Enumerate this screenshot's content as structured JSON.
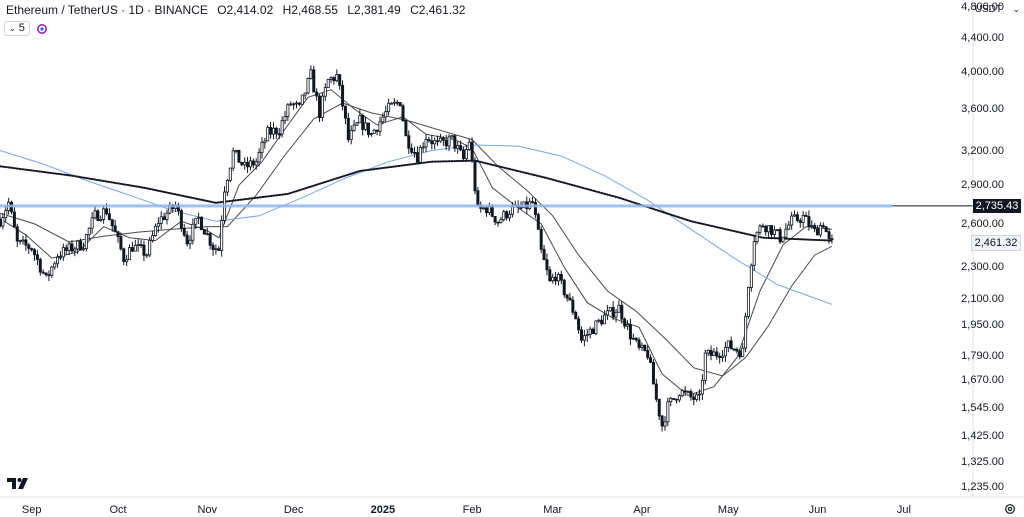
{
  "legend": {
    "symbol": "Ethereum / TetherUS · 1D · BINANCE",
    "o_label": "O",
    "o_value": "2,414.02",
    "h_label": "H",
    "h_value": "2,468.55",
    "l_label": "L",
    "l_value": "2,381.49",
    "c_label": "C",
    "c_value": "2,461.32"
  },
  "indicator_toggle": {
    "chevron": "⌄",
    "count": "5",
    "icon": "sync-icon"
  },
  "currency": {
    "label": "USDT",
    "chevron": "⌄"
  },
  "price_tags": {
    "horizontal_line": "2,735.43",
    "last_price": "2,461.32"
  },
  "colors": {
    "candle": "#131722",
    "ma_thin": "#4a4a4a",
    "ma_blue": "#7aa7e6",
    "ma_dotted": "#131722",
    "hline": "#90b4f0",
    "grid_border": "#e0e3eb"
  },
  "chart_data": {
    "type": "candlestick",
    "symbol": "ETHUSDT",
    "interval": "1D",
    "exchange": "BINANCE",
    "y_scale": "log",
    "ylim": [
      1200,
      4900
    ],
    "grid": false,
    "y_ticks": [
      {
        "value": 4800,
        "label": "4,800.00"
      },
      {
        "value": 4400,
        "label": "4,400.00"
      },
      {
        "value": 4000,
        "label": "4,000.00"
      },
      {
        "value": 3600,
        "label": "3,600.00"
      },
      {
        "value": 3200,
        "label": "3,200.00"
      },
      {
        "value": 2900,
        "label": "2,900.00"
      },
      {
        "value": 2600,
        "label": "2,600.00"
      },
      {
        "value": 2300,
        "label": "2,300.00"
      },
      {
        "value": 2100,
        "label": "2,100.00"
      },
      {
        "value": 1950,
        "label": "1,950.00"
      },
      {
        "value": 1790,
        "label": "1,790.00"
      },
      {
        "value": 1670,
        "label": "1,670.00"
      },
      {
        "value": 1545,
        "label": "1,545.00"
      },
      {
        "value": 1425,
        "label": "1,425.00"
      },
      {
        "value": 1325,
        "label": "1,325.00"
      },
      {
        "value": 1235,
        "label": "1,235.00"
      }
    ],
    "x_range": [
      "2024-08-21",
      "2025-07-25"
    ],
    "x_ticks": [
      {
        "date": "2024-09-01",
        "label": "Sep",
        "bold": false
      },
      {
        "date": "2024-10-01",
        "label": "Oct",
        "bold": false
      },
      {
        "date": "2024-11-01",
        "label": "Nov",
        "bold": false
      },
      {
        "date": "2024-12-01",
        "label": "Dec",
        "bold": false
      },
      {
        "date": "2025-01-01",
        "label": "2025",
        "bold": true
      },
      {
        "date": "2025-02-01",
        "label": "Feb",
        "bold": false
      },
      {
        "date": "2025-03-01",
        "label": "Mar",
        "bold": false
      },
      {
        "date": "2025-04-01",
        "label": "Apr",
        "bold": false
      },
      {
        "date": "2025-05-01",
        "label": "May",
        "bold": false
      },
      {
        "date": "2025-06-01",
        "label": "Jun",
        "bold": false
      },
      {
        "date": "2025-07-01",
        "label": "Jul",
        "bold": false
      }
    ],
    "horizontal_line": {
      "value": 2735.43,
      "end_date": "2025-06-27"
    },
    "last_price": 2461.32,
    "price_path": [
      [
        "2024-08-21",
        2630
      ],
      [
        "2024-08-24",
        2760
      ],
      [
        "2024-08-27",
        2460
      ],
      [
        "2024-09-01",
        2430
      ],
      [
        "2024-09-06",
        2220
      ],
      [
        "2024-09-10",
        2380
      ],
      [
        "2024-09-14",
        2420
      ],
      [
        "2024-09-19",
        2460
      ],
      [
        "2024-09-23",
        2660
      ],
      [
        "2024-09-27",
        2700
      ],
      [
        "2024-10-03",
        2360
      ],
      [
        "2024-10-06",
        2440
      ],
      [
        "2024-10-11",
        2390
      ],
      [
        "2024-10-15",
        2620
      ],
      [
        "2024-10-21",
        2740
      ],
      [
        "2024-10-25",
        2480
      ],
      [
        "2024-10-29",
        2640
      ],
      [
        "2024-11-03",
        2440
      ],
      [
        "2024-11-05",
        2420
      ],
      [
        "2024-11-07",
        2880
      ],
      [
        "2024-11-10",
        3180
      ],
      [
        "2024-11-14",
        3050
      ],
      [
        "2024-11-18",
        3100
      ],
      [
        "2024-11-22",
        3360
      ],
      [
        "2024-11-26",
        3400
      ],
      [
        "2024-11-30",
        3660
      ],
      [
        "2024-12-03",
        3600
      ],
      [
        "2024-12-07",
        3960
      ],
      [
        "2024-12-10",
        3560
      ],
      [
        "2024-12-13",
        3900
      ],
      [
        "2024-12-16",
        3950
      ],
      [
        "2024-12-18",
        3640
      ],
      [
        "2024-12-20",
        3300
      ],
      [
        "2024-12-24",
        3480
      ],
      [
        "2024-12-28",
        3350
      ],
      [
        "2025-01-03",
        3600
      ],
      [
        "2025-01-07",
        3680
      ],
      [
        "2025-01-09",
        3320
      ],
      [
        "2025-01-13",
        3150
      ],
      [
        "2025-01-16",
        3330
      ],
      [
        "2025-01-20",
        3250
      ],
      [
        "2025-01-25",
        3300
      ],
      [
        "2025-01-29",
        3120
      ],
      [
        "2025-01-31",
        3290
      ],
      [
        "2025-02-02",
        2880
      ],
      [
        "2025-02-03",
        2700
      ],
      [
        "2025-02-06",
        2720
      ],
      [
        "2025-02-10",
        2620
      ],
      [
        "2025-02-14",
        2700
      ],
      [
        "2025-02-19",
        2720
      ],
      [
        "2025-02-22",
        2760
      ],
      [
        "2025-02-25",
        2400
      ],
      [
        "2025-02-28",
        2200
      ],
      [
        "2025-03-02",
        2250
      ],
      [
        "2025-03-05",
        2150
      ],
      [
        "2025-03-09",
        2000
      ],
      [
        "2025-03-11",
        1870
      ],
      [
        "2025-03-14",
        1920
      ],
      [
        "2025-03-19",
        2000
      ],
      [
        "2025-03-24",
        2050
      ],
      [
        "2025-03-28",
        1900
      ],
      [
        "2025-03-31",
        1820
      ],
      [
        "2025-04-03",
        1800
      ],
      [
        "2025-04-06",
        1580
      ],
      [
        "2025-04-08",
        1470
      ],
      [
        "2025-04-10",
        1550
      ],
      [
        "2025-04-14",
        1620
      ],
      [
        "2025-04-18",
        1590
      ],
      [
        "2025-04-21",
        1580
      ],
      [
        "2025-04-23",
        1790
      ],
      [
        "2025-04-27",
        1800
      ],
      [
        "2025-05-01",
        1840
      ],
      [
        "2025-05-06",
        1810
      ],
      [
        "2025-05-08",
        2200
      ],
      [
        "2025-05-10",
        2500
      ],
      [
        "2025-05-13",
        2600
      ],
      [
        "2025-05-16",
        2560
      ],
      [
        "2025-05-19",
        2500
      ],
      [
        "2025-05-23",
        2620
      ],
      [
        "2025-05-27",
        2650
      ],
      [
        "2025-05-31",
        2540
      ],
      [
        "2025-06-03",
        2610
      ],
      [
        "2025-06-05",
        2470
      ],
      [
        "2025-06-06",
        2461
      ]
    ],
    "series": [
      {
        "type": "line",
        "style": "solid",
        "color": "#4a4a4a",
        "points": [
          [
            "2024-08-21",
            2640
          ],
          [
            "2024-08-30",
            2520
          ],
          [
            "2024-09-08",
            2360
          ],
          [
            "2024-09-17",
            2400
          ],
          [
            "2024-09-26",
            2580
          ],
          [
            "2024-10-05",
            2500
          ],
          [
            "2024-10-14",
            2480
          ],
          [
            "2024-10-23",
            2620
          ],
          [
            "2024-11-01",
            2550
          ],
          [
            "2024-11-05",
            2500
          ],
          [
            "2024-11-12",
            2900
          ],
          [
            "2024-11-20",
            3100
          ],
          [
            "2024-11-28",
            3400
          ],
          [
            "2024-12-06",
            3720
          ],
          [
            "2024-12-14",
            3800
          ],
          [
            "2024-12-22",
            3600
          ],
          [
            "2024-12-30",
            3440
          ],
          [
            "2025-01-08",
            3520
          ],
          [
            "2025-01-16",
            3350
          ],
          [
            "2025-01-26",
            3300
          ],
          [
            "2025-02-01",
            3220
          ],
          [
            "2025-02-08",
            2880
          ],
          [
            "2025-02-17",
            2720
          ],
          [
            "2025-02-25",
            2600
          ],
          [
            "2025-03-05",
            2300
          ],
          [
            "2025-03-13",
            2080
          ],
          [
            "2025-03-22",
            1990
          ],
          [
            "2025-03-31",
            1940
          ],
          [
            "2025-04-08",
            1700
          ],
          [
            "2025-04-17",
            1600
          ],
          [
            "2025-04-26",
            1640
          ],
          [
            "2025-05-04",
            1780
          ],
          [
            "2025-05-12",
            2150
          ],
          [
            "2025-05-20",
            2450
          ],
          [
            "2025-05-28",
            2580
          ],
          [
            "2025-06-06",
            2560
          ]
        ]
      },
      {
        "type": "line",
        "style": "solid",
        "color": "#4a4a4a",
        "points": [
          [
            "2024-08-21",
            2680
          ],
          [
            "2024-09-02",
            2600
          ],
          [
            "2024-09-14",
            2470
          ],
          [
            "2024-09-26",
            2510
          ],
          [
            "2024-10-08",
            2540
          ],
          [
            "2024-10-20",
            2560
          ],
          [
            "2024-11-01",
            2580
          ],
          [
            "2024-11-08",
            2580
          ],
          [
            "2024-11-18",
            2820
          ],
          [
            "2024-11-28",
            3160
          ],
          [
            "2024-12-08",
            3500
          ],
          [
            "2024-12-18",
            3660
          ],
          [
            "2024-12-28",
            3560
          ],
          [
            "2025-01-10",
            3480
          ],
          [
            "2025-01-22",
            3380
          ],
          [
            "2025-02-01",
            3300
          ],
          [
            "2025-02-10",
            3060
          ],
          [
            "2025-02-20",
            2860
          ],
          [
            "2025-03-01",
            2660
          ],
          [
            "2025-03-10",
            2380
          ],
          [
            "2025-03-20",
            2150
          ],
          [
            "2025-03-30",
            2030
          ],
          [
            "2025-04-09",
            1880
          ],
          [
            "2025-04-19",
            1730
          ],
          [
            "2025-04-29",
            1690
          ],
          [
            "2025-05-07",
            1780
          ],
          [
            "2025-05-15",
            1950
          ],
          [
            "2025-05-23",
            2180
          ],
          [
            "2025-05-31",
            2380
          ],
          [
            "2025-06-06",
            2440
          ]
        ]
      },
      {
        "type": "line",
        "style": "solid",
        "color": "#7aa7e6",
        "points": [
          [
            "2024-08-21",
            3200
          ],
          [
            "2024-09-05",
            3080
          ],
          [
            "2024-09-20",
            2940
          ],
          [
            "2024-10-05",
            2820
          ],
          [
            "2024-10-20",
            2700
          ],
          [
            "2024-11-04",
            2620
          ],
          [
            "2024-11-19",
            2660
          ],
          [
            "2024-12-04",
            2800
          ],
          [
            "2024-12-19",
            2960
          ],
          [
            "2025-01-03",
            3100
          ],
          [
            "2025-01-18",
            3200
          ],
          [
            "2025-02-02",
            3250
          ],
          [
            "2025-02-17",
            3240
          ],
          [
            "2025-03-04",
            3150
          ],
          [
            "2025-03-19",
            2980
          ],
          [
            "2025-04-03",
            2780
          ],
          [
            "2025-04-18",
            2560
          ],
          [
            "2025-05-03",
            2360
          ],
          [
            "2025-05-18",
            2190
          ],
          [
            "2025-06-06",
            2070
          ]
        ]
      },
      {
        "type": "line",
        "style": "dotted",
        "color": "#131722",
        "points": [
          [
            "2024-08-21",
            3060
          ],
          [
            "2024-09-15",
            2980
          ],
          [
            "2024-10-10",
            2880
          ],
          [
            "2024-11-04",
            2760
          ],
          [
            "2024-11-29",
            2830
          ],
          [
            "2024-12-24",
            3020
          ],
          [
            "2025-01-18",
            3100
          ],
          [
            "2025-02-02",
            3110
          ],
          [
            "2025-02-27",
            2960
          ],
          [
            "2025-03-24",
            2800
          ],
          [
            "2025-04-18",
            2620
          ],
          [
            "2025-05-13",
            2500
          ],
          [
            "2025-06-06",
            2480
          ]
        ]
      }
    ]
  }
}
